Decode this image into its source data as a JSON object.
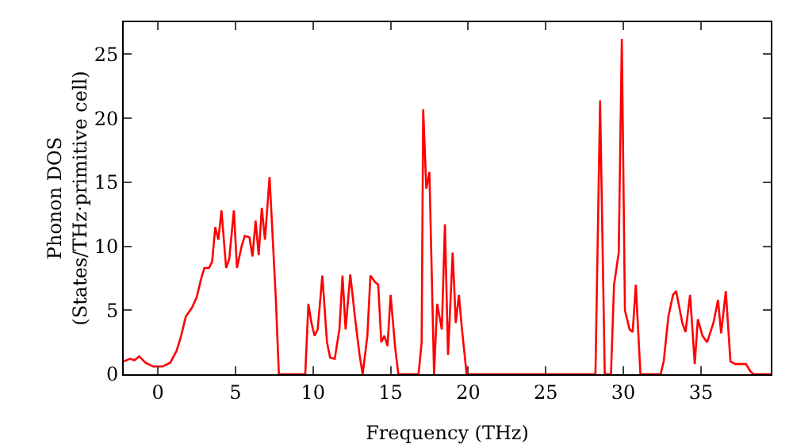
{
  "chart_data": {
    "type": "line",
    "xlabel": "Frequency (THz)",
    "ylabel": "Phonon DOS\n(States/THz·primitive cell)",
    "xlim": [
      -2.2,
      39.5
    ],
    "ylim": [
      0,
      27.5
    ],
    "xticks": [
      0,
      5,
      10,
      15,
      20,
      25,
      30,
      35
    ],
    "yticks": [
      0,
      5,
      10,
      15,
      20,
      25
    ],
    "grid": false,
    "legend": false,
    "marker": "none",
    "line_style": "solid",
    "series": [
      {
        "color": "#ff0000",
        "x": [
          -2.2,
          -1.8,
          -1.5,
          -1.2,
          -0.8,
          -0.3,
          0.3,
          0.8,
          1.2,
          1.5,
          1.8,
          2.2,
          2.5,
          2.8,
          3.0,
          3.3,
          3.5,
          3.7,
          3.9,
          4.1,
          4.4,
          4.6,
          4.9,
          5.1,
          5.4,
          5.6,
          5.9,
          6.1,
          6.3,
          6.5,
          6.7,
          6.9,
          7.2,
          7.6,
          7.8,
          9.5,
          9.7,
          9.9,
          10.1,
          10.3,
          10.6,
          10.9,
          11.1,
          11.4,
          11.7,
          11.9,
          12.1,
          12.4,
          12.7,
          13.0,
          13.2,
          13.5,
          13.7,
          14.0,
          14.2,
          14.4,
          14.6,
          14.8,
          15.0,
          15.3,
          15.5,
          16.8,
          17.0,
          17.1,
          17.3,
          17.5,
          17.8,
          18.0,
          18.3,
          18.5,
          18.7,
          19.0,
          19.2,
          19.4,
          19.6,
          19.9,
          28.2,
          28.5,
          28.8,
          29.2,
          29.4,
          29.7,
          29.9,
          30.1,
          30.4,
          30.6,
          30.8,
          31.1,
          32.4,
          32.6,
          32.9,
          33.2,
          33.4,
          33.8,
          34.0,
          34.3,
          34.6,
          34.8,
          35.1,
          35.4,
          35.8,
          36.1,
          36.3,
          36.6,
          36.9,
          37.2,
          37.6,
          37.9,
          38.2,
          38.4,
          39.5
        ],
        "values": [
          1.0,
          1.2,
          1.1,
          1.4,
          0.9,
          0.6,
          0.6,
          0.9,
          1.8,
          3.0,
          4.5,
          5.2,
          6.0,
          7.5,
          8.3,
          8.3,
          8.8,
          11.5,
          10.5,
          12.8,
          8.3,
          9.0,
          12.8,
          8.3,
          10.0,
          10.8,
          10.7,
          9.2,
          12.0,
          9.3,
          13.0,
          10.5,
          15.4,
          6.0,
          0,
          0,
          5.5,
          4.0,
          3.0,
          3.5,
          7.7,
          2.5,
          1.3,
          1.2,
          3.5,
          7.7,
          3.5,
          7.8,
          4.5,
          1.5,
          0,
          3.0,
          7.7,
          7.2,
          7.0,
          2.5,
          3.0,
          2.2,
          6.2,
          2.0,
          0,
          0,
          2.5,
          20.7,
          14.5,
          15.8,
          0,
          5.5,
          3.5,
          11.7,
          1.5,
          9.5,
          4.0,
          6.2,
          3.5,
          0,
          0,
          21.4,
          0,
          0,
          7.0,
          9.5,
          26.2,
          5.0,
          3.5,
          3.3,
          7.0,
          0,
          0,
          1.0,
          4.5,
          6.2,
          6.5,
          4.0,
          3.3,
          6.2,
          0.8,
          4.3,
          3.0,
          2.5,
          4.0,
          5.8,
          3.2,
          6.5,
          1.0,
          0.8,
          0.8,
          0.8,
          0.2,
          0,
          0
        ]
      }
    ]
  }
}
